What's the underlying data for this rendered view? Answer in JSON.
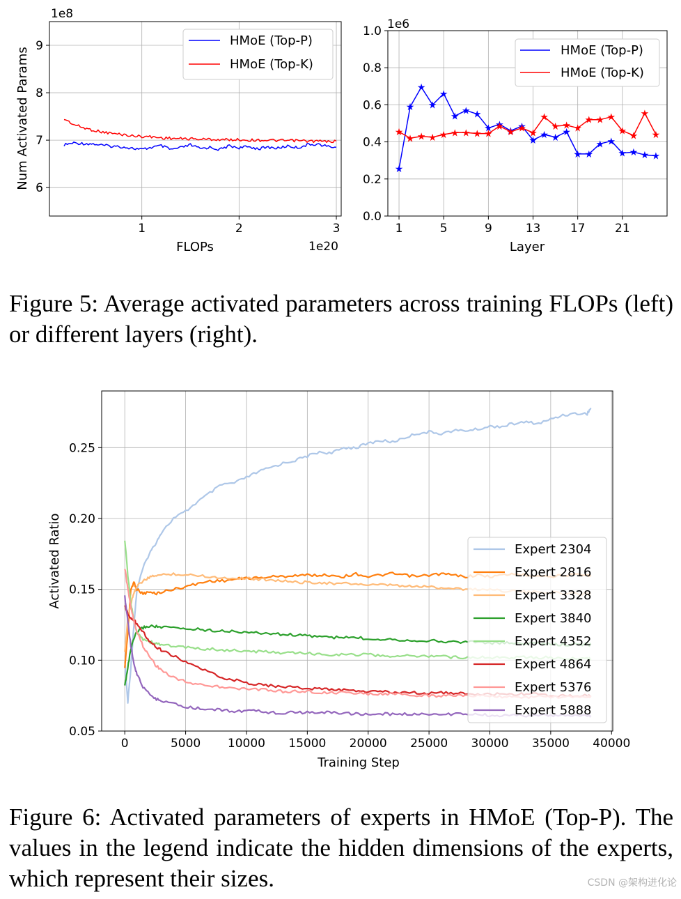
{
  "chart_data": [
    {
      "type": "line",
      "xlabel": "FLOPs",
      "ylabel": "Num Activated Params",
      "x_offset_label": "1e20",
      "y_offset_label": "1e8",
      "xlim": [
        0.05,
        3.05
      ],
      "ylim": [
        5.4,
        9.5
      ],
      "xticks": [
        1,
        2,
        3
      ],
      "yticks": [
        6,
        7,
        8,
        9
      ],
      "grid": true,
      "legend_position": "upper-right",
      "series": [
        {
          "name": "HMoE (Top-P)",
          "color": "#0000ff",
          "x": [
            0.2,
            0.3,
            0.4,
            0.5,
            0.6,
            0.7,
            0.8,
            0.9,
            1.0,
            1.1,
            1.2,
            1.3,
            1.4,
            1.5,
            1.6,
            1.7,
            1.8,
            1.9,
            2.0,
            2.1,
            2.2,
            2.3,
            2.4,
            2.5,
            2.6,
            2.7,
            2.8,
            2.9,
            3.0
          ],
          "values": [
            6.9,
            6.94,
            6.93,
            6.92,
            6.89,
            6.87,
            6.86,
            6.83,
            6.8,
            6.85,
            6.88,
            6.8,
            6.84,
            6.9,
            6.82,
            6.85,
            6.8,
            6.88,
            6.84,
            6.86,
            6.82,
            6.85,
            6.83,
            6.88,
            6.84,
            6.9,
            6.92,
            6.87,
            6.85
          ]
        },
        {
          "name": "HMoE (Top-K)",
          "color": "#ff0000",
          "x": [
            0.2,
            0.3,
            0.4,
            0.5,
            0.6,
            0.7,
            0.8,
            0.9,
            1.0,
            1.1,
            1.2,
            1.3,
            1.4,
            1.5,
            1.6,
            1.7,
            1.8,
            1.9,
            2.0,
            2.1,
            2.2,
            2.3,
            2.4,
            2.5,
            2.6,
            2.7,
            2.8,
            2.9,
            3.0
          ],
          "values": [
            7.45,
            7.33,
            7.26,
            7.21,
            7.17,
            7.14,
            7.12,
            7.09,
            7.08,
            7.07,
            7.05,
            7.04,
            7.03,
            7.03,
            7.02,
            7.02,
            7.01,
            7.01,
            7.01,
            7.0,
            7.0,
            7.0,
            6.99,
            6.99,
            6.99,
            6.98,
            6.98,
            6.97,
            6.98
          ]
        }
      ]
    },
    {
      "type": "line",
      "xlabel": "Layer",
      "y_offset_label": "1e6",
      "xlim": [
        0,
        25
      ],
      "ylim": [
        0.0,
        1.0
      ],
      "xticks": [
        1,
        5,
        9,
        13,
        17,
        21
      ],
      "yticks": [
        0.0,
        0.2,
        0.4,
        0.6,
        0.8,
        1.0
      ],
      "grid": true,
      "legend_position": "upper-right",
      "series": [
        {
          "name": "HMoE (Top-P)",
          "color": "#0000ff",
          "x": [
            1,
            2,
            3,
            4,
            5,
            6,
            7,
            8,
            9,
            10,
            11,
            12,
            13,
            14,
            15,
            16,
            17,
            18,
            19,
            20,
            21,
            22,
            23,
            24
          ],
          "values": [
            0.255,
            0.59,
            0.695,
            0.6,
            0.66,
            0.54,
            0.57,
            0.55,
            0.475,
            0.495,
            0.46,
            0.485,
            0.41,
            0.44,
            0.425,
            0.455,
            0.335,
            0.335,
            0.39,
            0.405,
            0.34,
            0.345,
            0.33,
            0.325
          ]
        },
        {
          "name": "HMoE (Top-K)",
          "color": "#ff0000",
          "x": [
            1,
            2,
            3,
            4,
            5,
            6,
            7,
            8,
            9,
            10,
            11,
            12,
            13,
            14,
            15,
            16,
            17,
            18,
            19,
            20,
            21,
            22,
            23,
            24
          ],
          "values": [
            0.455,
            0.42,
            0.43,
            0.425,
            0.44,
            0.45,
            0.45,
            0.445,
            0.445,
            0.485,
            0.455,
            0.475,
            0.45,
            0.535,
            0.485,
            0.49,
            0.475,
            0.52,
            0.52,
            0.535,
            0.46,
            0.435,
            0.555,
            0.44
          ]
        }
      ]
    },
    {
      "type": "line",
      "xlabel": "Training Step",
      "ylabel": "Activated Ratio",
      "xlim": [
        -1900,
        40100
      ],
      "ylim": [
        0.05,
        0.29
      ],
      "xticks": [
        0,
        5000,
        10000,
        15000,
        20000,
        25000,
        30000,
        35000,
        40000
      ],
      "yticks": [
        0.05,
        0.1,
        0.15,
        0.2,
        0.25
      ],
      "grid": true,
      "legend_position": "center-right",
      "x": [
        0,
        250,
        500,
        750,
        1000,
        1500,
        2000,
        2500,
        3000,
        4000,
        5000,
        6000,
        7000,
        8000,
        9000,
        10000,
        11000,
        12000,
        13000,
        14000,
        15000,
        16000,
        17000,
        18000,
        19000,
        20000,
        21000,
        22000,
        23000,
        24000,
        25000,
        26000,
        27000,
        28000,
        29000,
        30000,
        31000,
        32000,
        33000,
        34000,
        35000,
        36000,
        37000,
        38000,
        38300
      ],
      "series": [
        {
          "name": "Expert 2304",
          "color": "#aec7e8",
          "values": [
            0.1,
            0.07,
            0.095,
            0.125,
            0.15,
            0.165,
            0.175,
            0.182,
            0.19,
            0.2,
            0.205,
            0.212,
            0.218,
            0.224,
            0.225,
            0.229,
            0.233,
            0.236,
            0.239,
            0.241,
            0.244,
            0.247,
            0.246,
            0.25,
            0.25,
            0.253,
            0.255,
            0.254,
            0.257,
            0.26,
            0.261,
            0.26,
            0.262,
            0.262,
            0.263,
            0.265,
            0.265,
            0.267,
            0.268,
            0.267,
            0.27,
            0.273,
            0.274,
            0.274,
            0.278
          ]
        },
        {
          "name": "Expert 2816",
          "color": "#ff7f0e",
          "values": [
            0.095,
            0.12,
            0.15,
            0.155,
            0.15,
            0.147,
            0.148,
            0.147,
            0.148,
            0.15,
            0.152,
            0.154,
            0.156,
            0.156,
            0.157,
            0.158,
            0.158,
            0.159,
            0.159,
            0.16,
            0.16,
            0.16,
            0.16,
            0.159,
            0.161,
            0.159,
            0.16,
            0.161,
            0.16,
            0.159,
            0.16,
            0.161,
            0.16,
            0.159,
            0.16,
            0.159,
            0.16,
            0.161,
            0.16,
            0.16,
            0.159,
            0.16,
            0.16,
            0.16,
            0.16
          ]
        },
        {
          "name": "Expert 3328",
          "color": "#ffbb78",
          "values": [
            0.105,
            0.13,
            0.14,
            0.148,
            0.152,
            0.156,
            0.158,
            0.16,
            0.16,
            0.161,
            0.16,
            0.16,
            0.159,
            0.158,
            0.158,
            0.158,
            0.157,
            0.157,
            0.156,
            0.155,
            0.155,
            0.155,
            0.154,
            0.154,
            0.154,
            0.153,
            0.153,
            0.153,
            0.152,
            0.152,
            0.152,
            0.151,
            0.151,
            0.15,
            0.15,
            0.15,
            0.149,
            0.149,
            0.148,
            0.148,
            0.148,
            0.147,
            0.147,
            0.147,
            0.147
          ]
        },
        {
          "name": "Expert 3840",
          "color": "#2ca02c",
          "values": [
            0.082,
            0.095,
            0.108,
            0.115,
            0.12,
            0.123,
            0.124,
            0.124,
            0.123,
            0.123,
            0.122,
            0.122,
            0.121,
            0.121,
            0.12,
            0.12,
            0.119,
            0.119,
            0.118,
            0.118,
            0.117,
            0.117,
            0.116,
            0.116,
            0.116,
            0.115,
            0.115,
            0.115,
            0.114,
            0.114,
            0.114,
            0.113,
            0.113,
            0.113,
            0.113,
            0.112,
            0.112,
            0.112,
            0.112,
            0.112,
            0.111,
            0.111,
            0.111,
            0.111,
            0.111
          ]
        },
        {
          "name": "Expert 4352",
          "color": "#98df8a",
          "values": [
            0.185,
            0.16,
            0.14,
            0.128,
            0.12,
            0.115,
            0.113,
            0.112,
            0.111,
            0.11,
            0.109,
            0.108,
            0.108,
            0.107,
            0.107,
            0.106,
            0.106,
            0.106,
            0.105,
            0.105,
            0.105,
            0.104,
            0.104,
            0.104,
            0.104,
            0.104,
            0.103,
            0.103,
            0.103,
            0.103,
            0.103,
            0.103,
            0.102,
            0.102,
            0.102,
            0.102,
            0.102,
            0.102,
            0.102,
            0.102,
            0.102,
            0.101,
            0.101,
            0.101,
            0.101
          ]
        },
        {
          "name": "Expert 4864",
          "color": "#d62728",
          "values": [
            0.138,
            0.133,
            0.13,
            0.128,
            0.126,
            0.12,
            0.114,
            0.11,
            0.107,
            0.103,
            0.099,
            0.095,
            0.091,
            0.088,
            0.086,
            0.084,
            0.083,
            0.082,
            0.081,
            0.081,
            0.08,
            0.08,
            0.079,
            0.079,
            0.078,
            0.078,
            0.078,
            0.077,
            0.077,
            0.077,
            0.077,
            0.077,
            0.077,
            0.076,
            0.076,
            0.076,
            0.076,
            0.076,
            0.076,
            0.076,
            0.075,
            0.075,
            0.075,
            0.075,
            0.075
          ]
        },
        {
          "name": "Expert 5376",
          "color": "#ff9896",
          "values": [
            0.165,
            0.15,
            0.138,
            0.128,
            0.12,
            0.11,
            0.103,
            0.097,
            0.093,
            0.088,
            0.085,
            0.083,
            0.082,
            0.081,
            0.08,
            0.08,
            0.079,
            0.079,
            0.078,
            0.078,
            0.078,
            0.077,
            0.077,
            0.077,
            0.077,
            0.076,
            0.076,
            0.076,
            0.076,
            0.075,
            0.075,
            0.075,
            0.075,
            0.075,
            0.075,
            0.075,
            0.074,
            0.074,
            0.074,
            0.074,
            0.074,
            0.074,
            0.074,
            0.074,
            0.074
          ]
        },
        {
          "name": "Expert 5888",
          "color": "#9467bd",
          "values": [
            0.145,
            0.128,
            0.11,
            0.098,
            0.09,
            0.081,
            0.076,
            0.073,
            0.071,
            0.069,
            0.067,
            0.066,
            0.065,
            0.065,
            0.064,
            0.064,
            0.064,
            0.063,
            0.063,
            0.063,
            0.063,
            0.063,
            0.063,
            0.063,
            0.062,
            0.062,
            0.062,
            0.062,
            0.062,
            0.062,
            0.062,
            0.062,
            0.062,
            0.062,
            0.062,
            0.061,
            0.061,
            0.061,
            0.061,
            0.061,
            0.061,
            0.061,
            0.061,
            0.061,
            0.061
          ]
        }
      ]
    }
  ],
  "captions": {
    "fig5": "Figure 5: Average activated parameters across training FLOPs (left) or different layers (right).",
    "fig6": "Figure 6: Activated parameters of experts in HMoE (Top-P). The values in the legend indicate the hidden dimensions of the experts, which represent their sizes."
  },
  "watermark": "CSDN @架构进化论"
}
